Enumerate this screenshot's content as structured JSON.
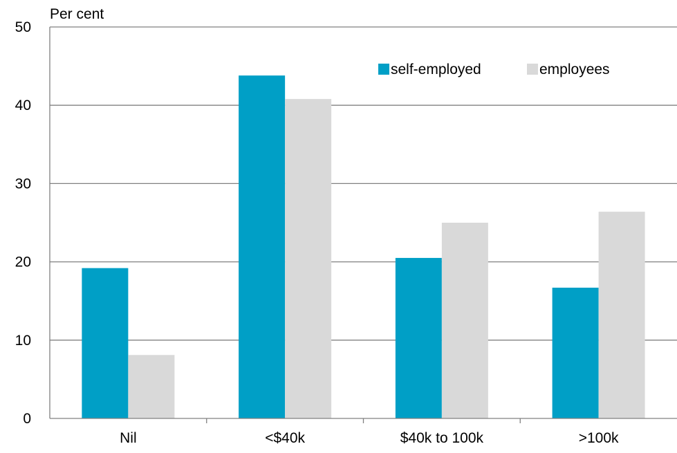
{
  "chart_data": {
    "type": "bar",
    "ylabel": "Per cent",
    "categories": [
      "Nil",
      "<$40k",
      "$40k to 100k",
      ">100k"
    ],
    "series": [
      {
        "name": "self-employed",
        "values": [
          19.2,
          43.8,
          20.5,
          16.7
        ],
        "color": "#009fc6"
      },
      {
        "name": "employees",
        "values": [
          8.1,
          40.8,
          25.0,
          26.4
        ],
        "color": "#d9d9d9"
      }
    ],
    "ylim": [
      0,
      50
    ],
    "yticks": [
      "0",
      "10",
      "20",
      "30",
      "40",
      "50"
    ],
    "grid": true,
    "legend_position": "top-right",
    "gridline_color": "#808080",
    "axis_color": "#808080"
  }
}
